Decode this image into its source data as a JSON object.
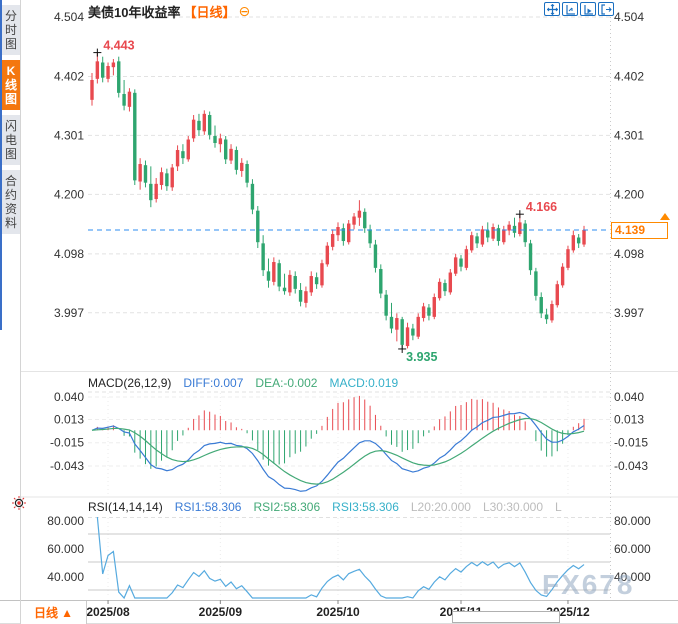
{
  "app": {
    "watermark": "FX678"
  },
  "sidebar": {
    "items": [
      {
        "label": "分时图",
        "active": false
      },
      {
        "label": "K线图",
        "active": true
      },
      {
        "label": "闪电图",
        "active": false
      },
      {
        "label": "合约资料",
        "active": false
      }
    ]
  },
  "header": {
    "title": "美债10年收益率",
    "period_tag": "【日线】",
    "collapse_icon": "⊖"
  },
  "price_tag": {
    "value": "4.139"
  },
  "indicators": {
    "macd": {
      "name": "MACD(26,12,9)",
      "diff": "DIFF:0.007",
      "dea": "DEA:-0.002",
      "macd": "MACD:0.019"
    },
    "rsi": {
      "name": "RSI(14,14,14)",
      "rsi1": "RSI1:58.306",
      "rsi2": "RSI2:58.306",
      "rsi3": "RSI3:58.306",
      "l20": "L20:20.000",
      "l30": "L30:30.000",
      "l": "L"
    }
  },
  "bottom": {
    "period_label": "日线",
    "arrow": "▲"
  },
  "colors": {
    "up": "#e8494f",
    "down": "#2ea56f",
    "accent": "#ff6600",
    "toolbar_blue": "#1a6fc0",
    "price_line": "#2d8cf0",
    "diff_line": "#3a7bd5",
    "dea_line": "#43a977",
    "rsi_line": "#56aadf"
  },
  "chart_data": [
    {
      "type": "candlestick",
      "title": "美债10年收益率 日线",
      "y_ticks": [
        4.504,
        4.402,
        4.301,
        4.2,
        4.098,
        3.997
      ],
      "price_line": 4.139,
      "last_close": 4.139,
      "x_labels": [
        {
          "label": "2025/08",
          "index": 3
        },
        {
          "label": "2025/09",
          "index": 24
        },
        {
          "label": "2025/10",
          "index": 46
        },
        {
          "label": "2025/11",
          "index": 69
        },
        {
          "label": "2025/12",
          "index": 89
        }
      ],
      "annotations": [
        {
          "text": "4.443",
          "value": 4.443,
          "index": 1,
          "pos": "above",
          "color": "#e8494f"
        },
        {
          "text": "3.935",
          "value": 3.935,
          "index": 58,
          "pos": "below",
          "color": "#2ea56f"
        },
        {
          "text": "4.166",
          "value": 4.166,
          "index": 80,
          "pos": "above",
          "color": "#e8494f"
        }
      ],
      "candles": [
        [
          4.362,
          4.408,
          4.352,
          4.396
        ],
        [
          4.398,
          4.443,
          4.39,
          4.428
        ],
        [
          4.426,
          4.436,
          4.392,
          4.4
        ],
        [
          4.398,
          4.426,
          4.392,
          4.42
        ],
        [
          4.418,
          4.432,
          4.404,
          4.426
        ],
        [
          4.428,
          4.436,
          4.366,
          4.374
        ],
        [
          4.372,
          4.396,
          4.344,
          4.352
        ],
        [
          4.35,
          4.382,
          4.342,
          4.376
        ],
        [
          4.374,
          4.38,
          4.216,
          4.224
        ],
        [
          4.222,
          4.262,
          4.208,
          4.252
        ],
        [
          4.25,
          4.258,
          4.212,
          4.22
        ],
        [
          4.218,
          4.248,
          4.178,
          4.19
        ],
        [
          4.192,
          4.228,
          4.186,
          4.218
        ],
        [
          4.216,
          4.246,
          4.208,
          4.238
        ],
        [
          4.236,
          4.244,
          4.206,
          4.214
        ],
        [
          4.212,
          4.252,
          4.206,
          4.246
        ],
        [
          4.248,
          4.284,
          4.24,
          4.276
        ],
        [
          4.274,
          4.286,
          4.252,
          4.262
        ],
        [
          4.26,
          4.3,
          4.256,
          4.294
        ],
        [
          4.296,
          4.336,
          4.29,
          4.328
        ],
        [
          4.326,
          4.338,
          4.3,
          4.31
        ],
        [
          4.308,
          4.344,
          4.302,
          4.338
        ],
        [
          4.336,
          4.342,
          4.294,
          4.302
        ],
        [
          4.3,
          4.318,
          4.28,
          4.288
        ],
        [
          4.286,
          4.304,
          4.272,
          4.296
        ],
        [
          4.294,
          4.3,
          4.252,
          4.26
        ],
        [
          4.258,
          4.286,
          4.252,
          4.278
        ],
        [
          4.276,
          4.282,
          4.234,
          4.242
        ],
        [
          4.24,
          4.262,
          4.23,
          4.254
        ],
        [
          4.252,
          4.258,
          4.212,
          4.22
        ],
        [
          4.218,
          4.226,
          4.166,
          4.174
        ],
        [
          4.172,
          4.18,
          4.108,
          4.118
        ],
        [
          4.116,
          4.13,
          4.06,
          4.07
        ],
        [
          4.068,
          4.09,
          4.04,
          4.052
        ],
        [
          4.05,
          4.092,
          4.044,
          4.084
        ],
        [
          4.082,
          4.088,
          4.034,
          4.042
        ],
        [
          4.04,
          4.064,
          4.028,
          4.034
        ],
        [
          4.032,
          4.07,
          4.026,
          4.062
        ],
        [
          4.06,
          4.068,
          4.03,
          4.038
        ],
        [
          4.036,
          4.048,
          4.008,
          4.016
        ],
        [
          4.014,
          4.042,
          4.006,
          4.034
        ],
        [
          4.032,
          4.068,
          4.026,
          4.06
        ],
        [
          4.058,
          4.066,
          4.038,
          4.046
        ],
        [
          4.044,
          4.088,
          4.04,
          4.082
        ],
        [
          4.08,
          4.118,
          4.076,
          4.112
        ],
        [
          4.11,
          4.14,
          4.104,
          4.132
        ],
        [
          4.13,
          4.152,
          4.12,
          4.144
        ],
        [
          4.142,
          4.15,
          4.112,
          4.12
        ],
        [
          4.118,
          4.156,
          4.114,
          4.15
        ],
        [
          4.148,
          4.168,
          4.14,
          4.162
        ],
        [
          4.16,
          4.19,
          4.146,
          4.172
        ],
        [
          4.17,
          4.176,
          4.134,
          4.142
        ],
        [
          4.14,
          4.148,
          4.108,
          4.116
        ],
        [
          4.114,
          4.122,
          4.066,
          4.074
        ],
        [
          4.072,
          4.08,
          4.022,
          4.03
        ],
        [
          4.028,
          4.036,
          3.984,
          3.992
        ],
        [
          3.99,
          4.014,
          3.962,
          3.97
        ],
        [
          3.968,
          3.996,
          3.948,
          3.988
        ],
        [
          3.986,
          3.99,
          3.935,
          3.942
        ],
        [
          3.94,
          3.98,
          3.936,
          3.972
        ],
        [
          3.97,
          3.978,
          3.95,
          3.958
        ],
        [
          3.956,
          3.996,
          3.952,
          3.99
        ],
        [
          3.988,
          4.014,
          3.982,
          4.008
        ],
        [
          4.006,
          4.012,
          3.984,
          3.992
        ],
        [
          3.99,
          4.03,
          3.986,
          4.024
        ],
        [
          4.022,
          4.056,
          4.018,
          4.05
        ],
        [
          4.048,
          4.054,
          4.026,
          4.034
        ],
        [
          4.032,
          4.072,
          4.028,
          4.066
        ],
        [
          4.064,
          4.098,
          4.06,
          4.092
        ],
        [
          4.09,
          4.096,
          4.068,
          4.076
        ],
        [
          4.074,
          4.112,
          4.07,
          4.106
        ],
        [
          4.104,
          4.136,
          4.1,
          4.13
        ],
        [
          4.128,
          4.134,
          4.108,
          4.116
        ],
        [
          4.114,
          4.146,
          4.11,
          4.14
        ],
        [
          4.138,
          4.152,
          4.118,
          4.126
        ],
        [
          4.124,
          4.15,
          4.12,
          4.144
        ],
        [
          4.142,
          4.148,
          4.112,
          4.12
        ],
        [
          4.118,
          4.146,
          4.114,
          4.14
        ],
        [
          4.138,
          4.154,
          4.13,
          4.148
        ],
        [
          4.146,
          4.16,
          4.126,
          4.134
        ],
        [
          4.132,
          4.166,
          4.128,
          4.152
        ],
        [
          4.15,
          4.156,
          4.11,
          4.118
        ],
        [
          4.116,
          4.122,
          4.062,
          4.07
        ],
        [
          4.068,
          4.074,
          4.018,
          4.026
        ],
        [
          4.024,
          4.032,
          3.988,
          3.996
        ],
        [
          3.994,
          4.004,
          3.978,
          3.986
        ],
        [
          3.984,
          4.018,
          3.98,
          4.012
        ],
        [
          4.01,
          4.052,
          4.006,
          4.046
        ],
        [
          4.044,
          4.082,
          4.04,
          4.076
        ],
        [
          4.074,
          4.112,
          4.07,
          4.106
        ],
        [
          4.104,
          4.138,
          4.1,
          4.13
        ],
        [
          4.126,
          4.132,
          4.108,
          4.116
        ],
        [
          4.114,
          4.146,
          4.11,
          4.139
        ]
      ]
    },
    {
      "type": "bar",
      "name": "MACD(26,12,9)",
      "computed_from": "candles (EMA12-EMA26, DEA=EMA9(DIFF), hist=2*(DIFF-DEA))",
      "latest": {
        "diff": 0.007,
        "dea": -0.002,
        "macd": 0.019
      },
      "y_ticks": [
        0.04,
        0.013,
        -0.015,
        -0.043
      ]
    },
    {
      "type": "line",
      "name": "RSI(14,14,14)",
      "computed_from": "candles (Wilder RSI-14; RSI1=RSI2=RSI3)",
      "latest": {
        "rsi1": 58.306,
        "rsi2": 58.306,
        "rsi3": 58.306
      },
      "levels": {
        "l20": 20.0,
        "l30": 30.0
      },
      "y_ticks": [
        80.0,
        60.0,
        40.0
      ]
    }
  ]
}
